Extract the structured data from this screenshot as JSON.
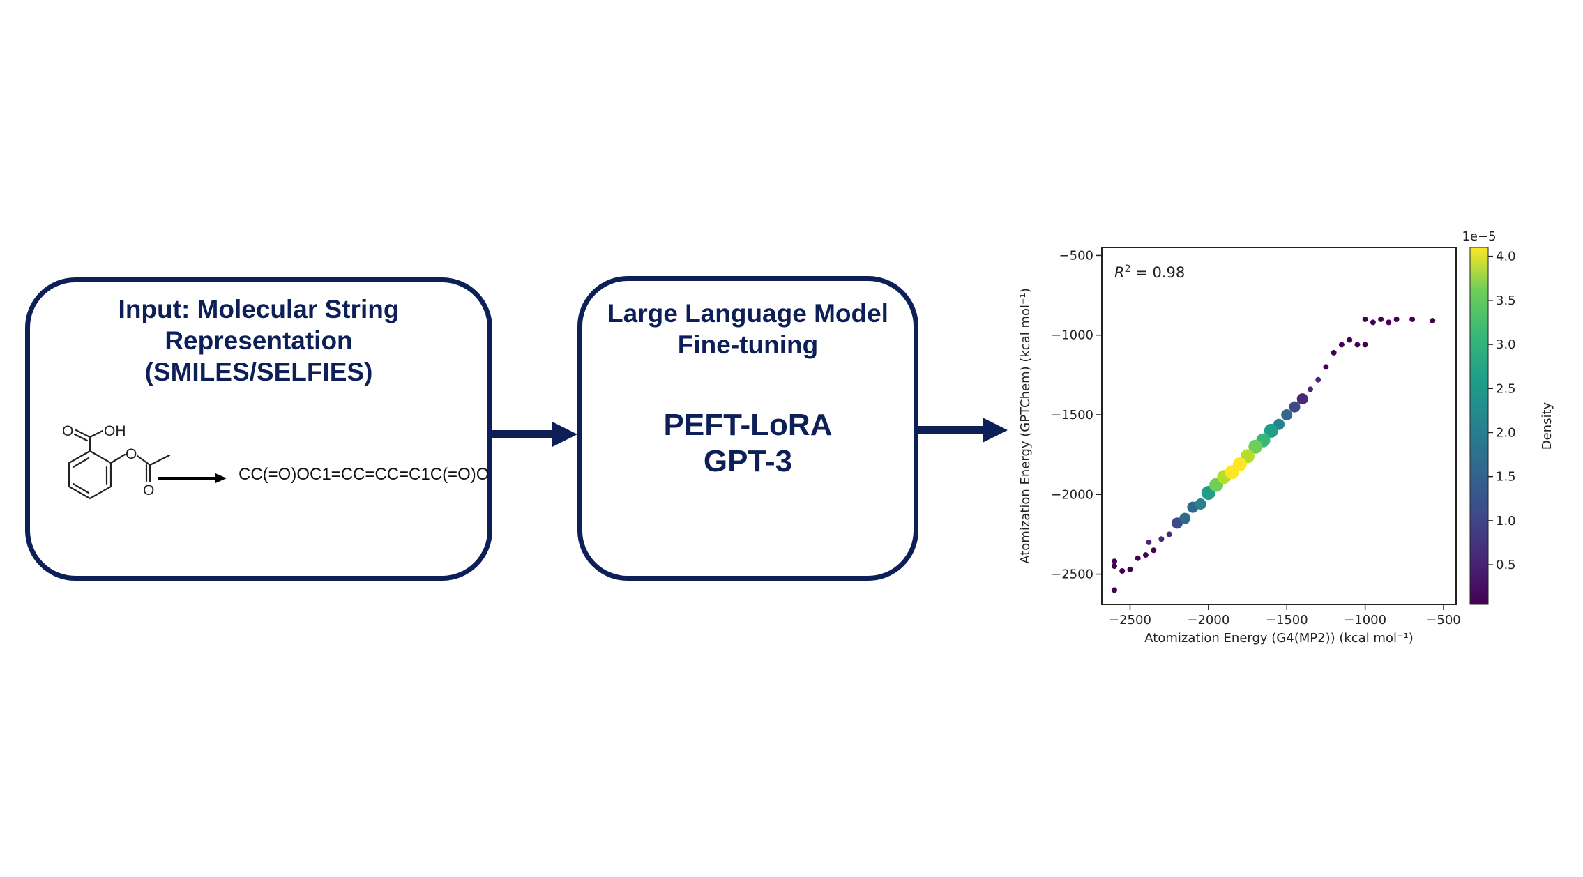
{
  "input_box": {
    "title_lines": [
      "Input: Molecular String",
      "Representation",
      "(SMILES/SELFIES)"
    ],
    "molecule_labels": {
      "oh": "OH",
      "o_carbonyl": "O",
      "o_ester": "O",
      "o_acetyl": "O"
    },
    "smiles": "CC(=O)OC1=CC=CC=C1C(=O)O"
  },
  "model_box": {
    "title_lines": [
      "Large Language Model",
      "Fine-tuning"
    ],
    "method": "PEFT-LoRA",
    "model": "GPT-3"
  },
  "colors": {
    "navy": "#0c1f57"
  },
  "chart_data": {
    "type": "scatter",
    "xlabel": "Atomization Energy (G4(MP2)) (kcal mol⁻¹)",
    "ylabel": "Atomization Energy (GPTChem) (kcal mol⁻¹)",
    "xlim": [
      -2680,
      -420
    ],
    "ylim": [
      -2690,
      -450
    ],
    "xticks": [
      -2500,
      -2000,
      -1500,
      -1000,
      -500
    ],
    "yticks": [
      -2500,
      -2000,
      -1500,
      -1000,
      -500
    ],
    "annotation": {
      "prefix": "R",
      "superscript": "2",
      "text": " = 0.98"
    },
    "grid": false,
    "colormap": "viridis",
    "colorbar": {
      "label": "Density",
      "scale_label": "1e−5",
      "ticks": [
        0.5,
        1.0,
        1.5,
        2.0,
        2.5,
        3.0,
        3.5,
        4.0
      ],
      "range": [
        0.05,
        4.1
      ]
    },
    "points": [
      [
        -2600,
        -2600,
        0.1
      ],
      [
        -2600,
        -2450,
        0.1
      ],
      [
        -2600,
        -2420,
        0.1
      ],
      [
        -2550,
        -2480,
        0.1
      ],
      [
        -2500,
        -2470,
        0.15
      ],
      [
        -2450,
        -2400,
        0.2
      ],
      [
        -2400,
        -2380,
        0.2
      ],
      [
        -2380,
        -2300,
        0.3
      ],
      [
        -2350,
        -2350,
        0.25
      ],
      [
        -2300,
        -2280,
        0.4
      ],
      [
        -2250,
        -2250,
        0.6
      ],
      [
        -2200,
        -2180,
        0.9
      ],
      [
        -2150,
        -2150,
        1.2
      ],
      [
        -2100,
        -2080,
        1.6
      ],
      [
        -2050,
        -2060,
        2.0
      ],
      [
        -2000,
        -1990,
        2.5
      ],
      [
        -1950,
        -1940,
        3.0
      ],
      [
        -1900,
        -1890,
        3.6
      ],
      [
        -1850,
        -1860,
        4.0
      ],
      [
        -1800,
        -1810,
        4.1
      ],
      [
        -1750,
        -1760,
        3.8
      ],
      [
        -1700,
        -1700,
        3.3
      ],
      [
        -1650,
        -1660,
        2.8
      ],
      [
        -1600,
        -1600,
        2.2
      ],
      [
        -1550,
        -1560,
        1.8
      ],
      [
        -1500,
        -1500,
        1.4
      ],
      [
        -1450,
        -1450,
        1.0
      ],
      [
        -1400,
        -1400,
        0.7
      ],
      [
        -1350,
        -1340,
        0.5
      ],
      [
        -1300,
        -1280,
        0.3
      ],
      [
        -1250,
        -1200,
        0.2
      ],
      [
        -1200,
        -1110,
        0.15
      ],
      [
        -1150,
        -1060,
        0.1
      ],
      [
        -1100,
        -1030,
        0.1
      ],
      [
        -1050,
        -1060,
        0.1
      ],
      [
        -1000,
        -1060,
        0.1
      ],
      [
        -1000,
        -900,
        0.1
      ],
      [
        -950,
        -920,
        0.1
      ],
      [
        -900,
        -900,
        0.1
      ],
      [
        -850,
        -920,
        0.1
      ],
      [
        -800,
        -900,
        0.1
      ],
      [
        -700,
        -900,
        0.1
      ],
      [
        -570,
        -910,
        0.1
      ]
    ]
  }
}
